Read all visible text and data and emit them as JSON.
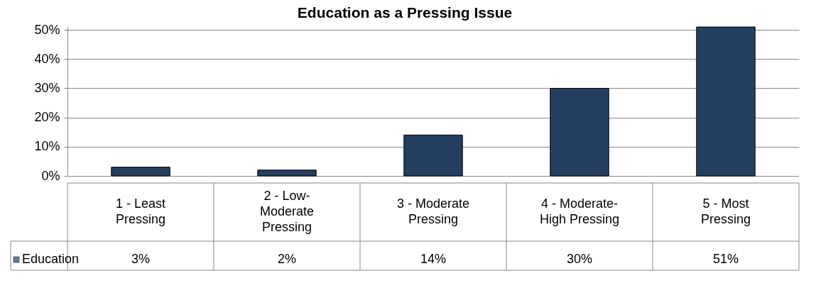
{
  "chart_data": {
    "type": "bar",
    "title": "Education as a Pressing Issue",
    "categories": [
      "1 - Least Pressing",
      "2 - Low-Moderate Pressing",
      "3 - Moderate Pressing",
      "4 - Moderate-High Pressing",
      "5 - Most Pressing"
    ],
    "series": [
      {
        "name": "Education",
        "color": "#243f60",
        "values": [
          3,
          2,
          14,
          30,
          51
        ],
        "value_labels": [
          "3%",
          "2%",
          "14%",
          "30%",
          "51%"
        ]
      }
    ],
    "ylim": [
      0,
      51
    ],
    "yticks": [
      {
        "value": 0,
        "label": "0%"
      },
      {
        "value": 10,
        "label": "10%"
      },
      {
        "value": 20,
        "label": "20%"
      },
      {
        "value": 30,
        "label": "30%"
      },
      {
        "value": 40,
        "label": "40%"
      },
      {
        "value": 50,
        "label": "50%"
      }
    ],
    "grid": "y",
    "legend": "bottom left"
  }
}
